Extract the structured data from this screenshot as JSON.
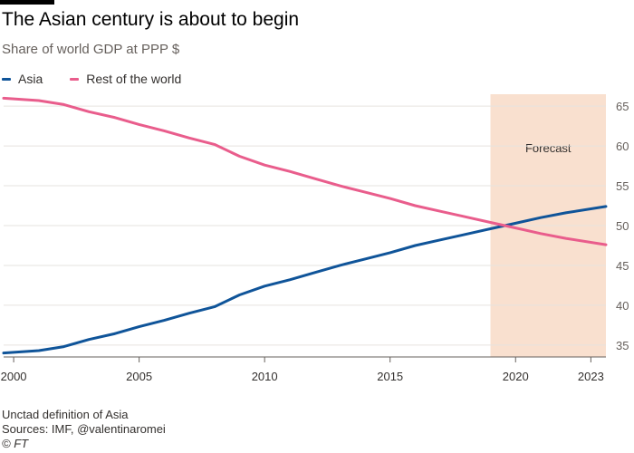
{
  "header": {
    "title": "The Asian century is about to begin",
    "subtitle": "Share of world GDP at PPP $"
  },
  "legend": [
    {
      "label": "Asia",
      "color": "#0f5499"
    },
    {
      "label": "Rest of the world",
      "color": "#e95d8c"
    }
  ],
  "chart_data": {
    "type": "line",
    "title": "The Asian century is about to begin",
    "subtitle": "Share of world GDP at PPP $",
    "x": [
      1999.6,
      2001,
      2002,
      2003,
      2004,
      2005,
      2006,
      2007,
      2008,
      2009,
      2010,
      2011,
      2012,
      2013,
      2014,
      2015,
      2016,
      2017,
      2018,
      2019,
      2020,
      2021,
      2022,
      2023.6
    ],
    "series": [
      {
        "name": "Asia",
        "color": "#0f5499",
        "values": [
          34.0,
          34.3,
          34.8,
          35.7,
          36.4,
          37.3,
          38.1,
          39.0,
          39.8,
          41.3,
          42.4,
          43.2,
          44.1,
          45.0,
          45.8,
          46.6,
          47.5,
          48.2,
          48.9,
          49.6,
          50.3,
          51.0,
          51.6,
          52.4
        ]
      },
      {
        "name": "Rest of the world",
        "color": "#e95d8c",
        "values": [
          66.0,
          65.7,
          65.2,
          64.3,
          63.6,
          62.7,
          61.9,
          61.0,
          60.2,
          58.7,
          57.6,
          56.8,
          55.9,
          55.0,
          54.2,
          53.4,
          52.5,
          51.8,
          51.1,
          50.4,
          49.7,
          49.0,
          48.4,
          47.6
        ]
      }
    ],
    "xlim": [
      1999.6,
      2023.6
    ],
    "ylim": [
      33.5,
      66.5
    ],
    "x_ticks": [
      2000,
      2005,
      2010,
      2015,
      2020,
      2023
    ],
    "y_ticks": [
      35,
      40,
      45,
      50,
      55,
      60,
      65
    ],
    "y_axis_position": "right",
    "grid": "horizontal",
    "legend_position": "top-left",
    "forecast": {
      "label": "Forecast",
      "start": 2019,
      "end": 2023.6,
      "color": "#f9e0cf"
    }
  },
  "footer": {
    "note": "Unctad definition of Asia",
    "sources": "Sources: IMF, @valentinaromei",
    "copyright": "© FT"
  }
}
